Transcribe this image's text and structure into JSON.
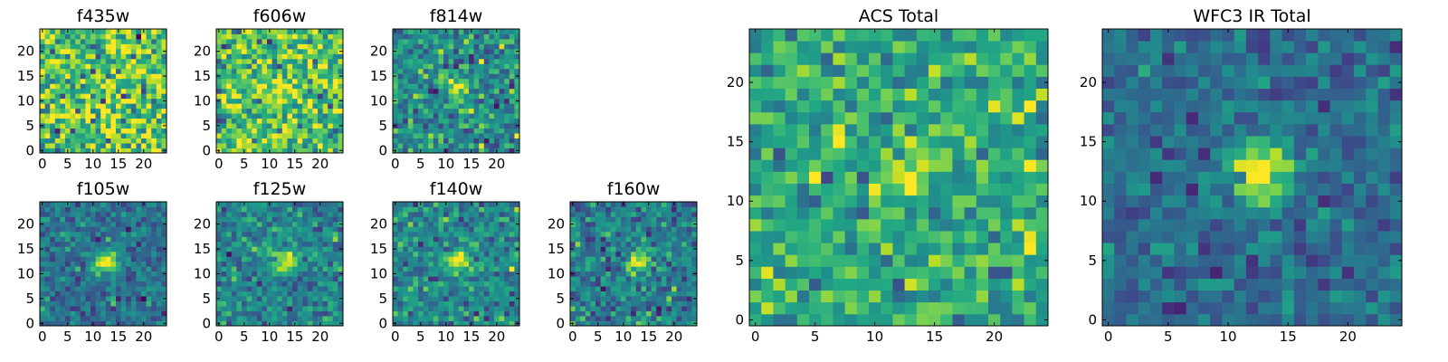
{
  "figure": {
    "kind": "astronomical cutout stamps",
    "colormap": "viridis"
  },
  "colors": {
    "frame": "#000000",
    "background": "#ffffff"
  },
  "chart_data": [
    {
      "type": "heatmap",
      "id": "f435w",
      "title": "f435w",
      "size": 25,
      "xlim": [
        0,
        24
      ],
      "ylim": [
        0,
        24
      ],
      "xticks": [
        0,
        5,
        10,
        15,
        20
      ],
      "yticks": [
        0,
        5,
        10,
        15,
        20
      ],
      "source": null,
      "sigma": 0,
      "peak": 0,
      "noise": 0.22,
      "base": 0.72,
      "seed": 11
    },
    {
      "type": "heatmap",
      "id": "f606w",
      "title": "f606w",
      "size": 25,
      "xlim": [
        0,
        24
      ],
      "ylim": [
        0,
        24
      ],
      "xticks": [
        0,
        5,
        10,
        15,
        20
      ],
      "yticks": [
        0,
        5,
        10,
        15,
        20
      ],
      "source": [
        12.5,
        12.5
      ],
      "sigma": 1.2,
      "peak": 0.25,
      "noise": 0.2,
      "base": 0.7,
      "seed": 23
    },
    {
      "type": "heatmap",
      "id": "f814w",
      "title": "f814w",
      "size": 25,
      "xlim": [
        0,
        24
      ],
      "ylim": [
        0,
        24
      ],
      "xticks": [
        0,
        5,
        10,
        15,
        20
      ],
      "yticks": [
        0,
        5,
        10,
        15,
        20
      ],
      "source": [
        12.5,
        12.5
      ],
      "sigma": 1.3,
      "peak": 0.5,
      "noise": 0.16,
      "base": 0.5,
      "seed": 37
    },
    {
      "type": "heatmap",
      "id": "f105w",
      "title": "f105w",
      "size": 25,
      "xlim": [
        0,
        24
      ],
      "ylim": [
        0,
        24
      ],
      "xticks": [
        0,
        5,
        10,
        15,
        20
      ],
      "yticks": [
        0,
        5,
        10,
        15,
        20
      ],
      "source": [
        12.5,
        12.5
      ],
      "sigma": 1.7,
      "peak": 0.6,
      "noise": 0.11,
      "base": 0.38,
      "seed": 41
    },
    {
      "type": "heatmap",
      "id": "f125w",
      "title": "f125w",
      "size": 25,
      "xlim": [
        0,
        24
      ],
      "ylim": [
        0,
        24
      ],
      "xticks": [
        0,
        5,
        10,
        15,
        20
      ],
      "yticks": [
        0,
        5,
        10,
        15,
        20
      ],
      "source": [
        13,
        12.5
      ],
      "sigma": 1.6,
      "peak": 0.55,
      "noise": 0.12,
      "base": 0.45,
      "seed": 53
    },
    {
      "type": "heatmap",
      "id": "f140w",
      "title": "f140w",
      "size": 25,
      "xlim": [
        0,
        24
      ],
      "ylim": [
        0,
        24
      ],
      "xticks": [
        0,
        5,
        10,
        15,
        20
      ],
      "yticks": [
        0,
        5,
        10,
        15,
        20
      ],
      "source": [
        12.5,
        12.5
      ],
      "sigma": 1.6,
      "peak": 0.55,
      "noise": 0.13,
      "base": 0.47,
      "seed": 67
    },
    {
      "type": "heatmap",
      "id": "f160w",
      "title": "f160w",
      "size": 25,
      "xlim": [
        0,
        24
      ],
      "ylim": [
        0,
        24
      ],
      "xticks": [
        0,
        5,
        10,
        15,
        20
      ],
      "yticks": [
        0,
        5,
        10,
        15,
        20
      ],
      "source": [
        13,
        12.5
      ],
      "sigma": 1.6,
      "peak": 0.6,
      "noise": 0.14,
      "base": 0.42,
      "seed": 79
    },
    {
      "type": "heatmap",
      "id": "acs-total",
      "title": "ACS Total",
      "size": 25,
      "xlim": [
        0,
        24
      ],
      "ylim": [
        0,
        24
      ],
      "xticks": [
        0,
        5,
        10,
        15,
        20
      ],
      "yticks": [
        0,
        5,
        10,
        15,
        20
      ],
      "source": [
        12.5,
        12.5
      ],
      "sigma": 1.5,
      "peak": 0.4,
      "noise": 0.15,
      "base": 0.6,
      "seed": 97
    },
    {
      "type": "heatmap",
      "id": "wfc3-ir-total",
      "title": "WFC3 IR Total",
      "size": 25,
      "xlim": [
        0,
        24
      ],
      "ylim": [
        0,
        24
      ],
      "xticks": [
        0,
        5,
        10,
        15,
        20
      ],
      "yticks": [
        0,
        5,
        10,
        15,
        20
      ],
      "source": [
        12.5,
        12.5
      ],
      "sigma": 1.7,
      "peak": 0.7,
      "noise": 0.1,
      "base": 0.36,
      "seed": 113
    }
  ]
}
